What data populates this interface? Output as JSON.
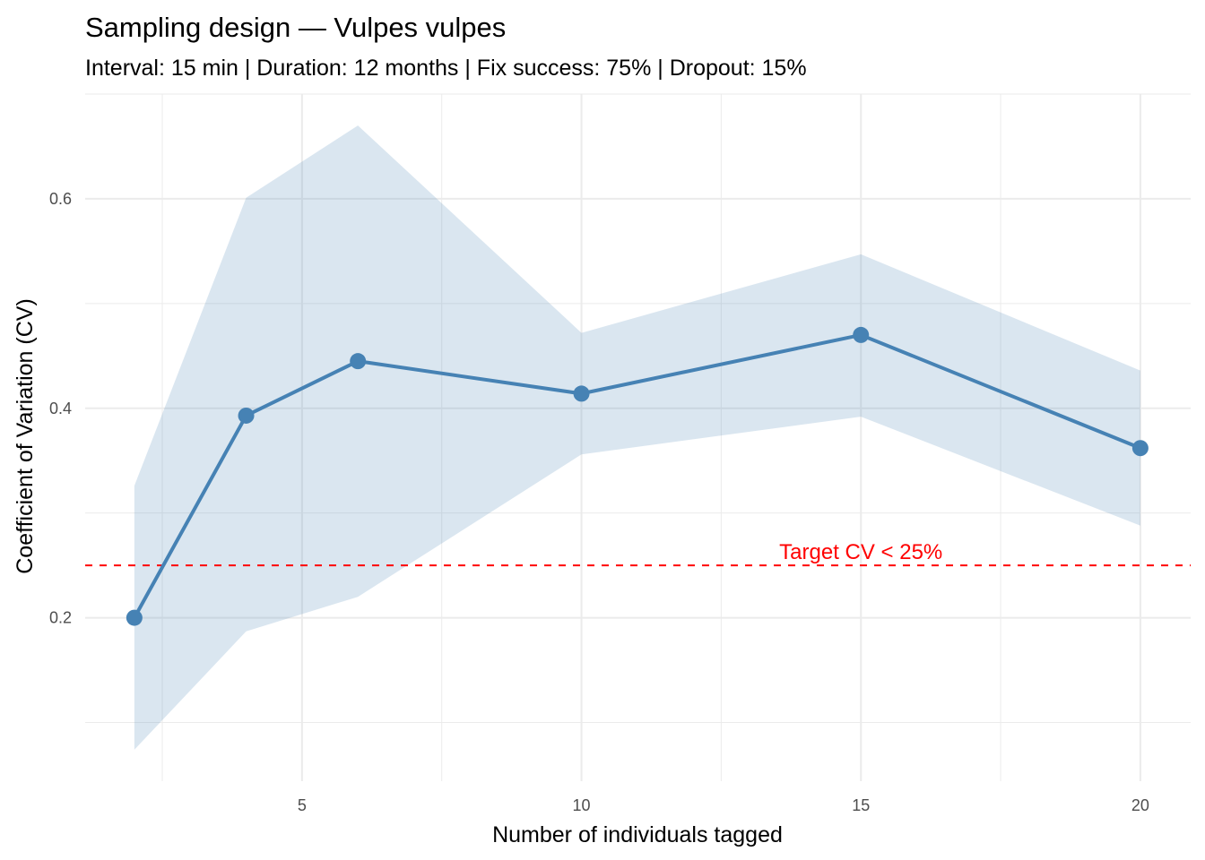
{
  "chart_data": {
    "type": "line",
    "title": "Sampling design — Vulpes vulpes",
    "subtitle": "Interval: 15 min | Duration: 12 months | Fix success: 75% | Dropout: 15%",
    "xlabel": "Number of individuals tagged",
    "ylabel": "Coefficient of Variation (CV)",
    "xlim": [
      1.12,
      20.9
    ],
    "ylim": [
      0.044,
      0.7
    ],
    "x_ticks": [
      5,
      10,
      15,
      20
    ],
    "x_tick_labels": [
      "5",
      "10",
      "15",
      "20"
    ],
    "x_minor_ticks": [
      2.5,
      7.5,
      12.5,
      17.5
    ],
    "y_ticks": [
      0.2,
      0.4,
      0.6
    ],
    "y_tick_labels": [
      "0.2",
      "0.4",
      "0.6"
    ],
    "y_minor_ticks": [
      0.1,
      0.3,
      0.5,
      0.7
    ],
    "grid": true,
    "legend": "none",
    "series": [
      {
        "name": "CV",
        "color": "#4682B4",
        "x": [
          2,
          4,
          6,
          10,
          15,
          20
        ],
        "values": [
          0.2,
          0.393,
          0.445,
          0.414,
          0.47,
          0.362
        ],
        "lower": [
          0.074,
          0.187,
          0.22,
          0.356,
          0.392,
          0.288
        ],
        "upper": [
          0.326,
          0.601,
          0.67,
          0.472,
          0.547,
          0.436
        ]
      }
    ],
    "ribbon_color": "#DAE6F0",
    "reference_line": {
      "y": 0.25,
      "style": "dashed",
      "color": "#FF0000",
      "label": "Target CV < 25%",
      "label_x": 15
    }
  }
}
